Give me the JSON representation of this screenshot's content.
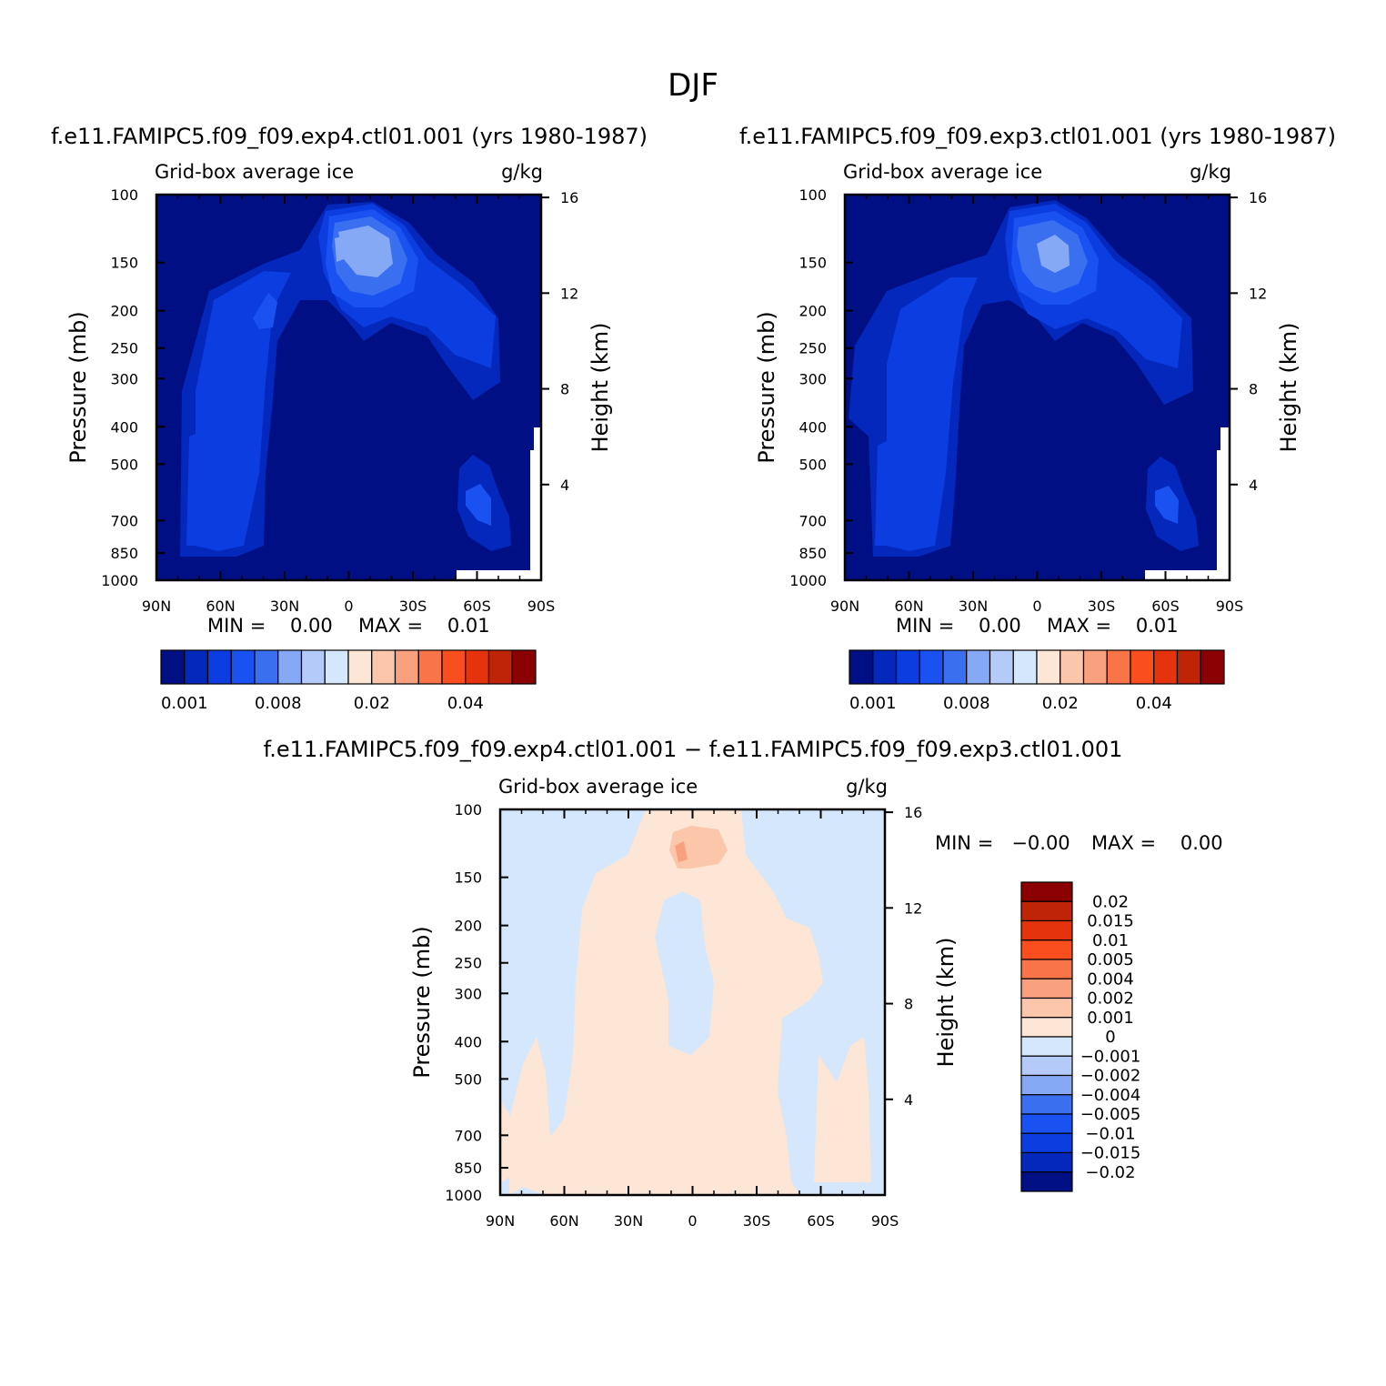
{
  "page_title": "DJF",
  "colors": {
    "pos_levels": [
      "#000f83",
      "#0328bb",
      "#0b3de0",
      "#1a52f2",
      "#3a6ff0",
      "#86a9f5",
      "#b4cbfa",
      "#d5e7fc",
      "#fde6d5",
      "#fbc6aa",
      "#f9a07e",
      "#f97448",
      "#fb4e1f",
      "#e5330e",
      "#bf2407",
      "#8b0000"
    ],
    "diff_levels": [
      "#000f83",
      "#0328bb",
      "#0b3de0",
      "#1a52f2",
      "#3a6ff0",
      "#86a9f5",
      "#b4cbfa",
      "#d5e7fc",
      "#fde6d5",
      "#fbc6aa",
      "#f9a07e",
      "#f97448",
      "#fb4e1f",
      "#e5330e",
      "#bf2407",
      "#8b0000"
    ]
  },
  "chart_data": [
    {
      "type": "heatmap",
      "title": "f.e11.FAMIPC5.f09_f09.exp4.ctl01.001 (yrs 1980-1987)",
      "subtitle_left": "Grid-box average ice",
      "subtitle_right": "g/kg",
      "ylabel": "Pressure (mb)",
      "ylabel_right": "Height (km)",
      "x_ticks": [
        "90N",
        "60N",
        "30N",
        "0",
        "30S",
        "60S",
        "90S"
      ],
      "y_ticks": [
        "100",
        "150",
        "200",
        "250",
        "300",
        "400",
        "500",
        "700",
        "850",
        "1000"
      ],
      "y_ticks_right": [
        "16",
        "12",
        "8",
        "4"
      ],
      "min_text": "MIN =    0.00",
      "max_text": "MAX =    0.01",
      "colorbar_labels": [
        "0.001",
        "0.008",
        "0.02",
        "0.04"
      ],
      "ylim": [
        1000,
        100
      ]
    },
    {
      "type": "heatmap",
      "title": "f.e11.FAMIPC5.f09_f09.exp3.ctl01.001 (yrs 1980-1987)",
      "subtitle_left": "Grid-box average ice",
      "subtitle_right": "g/kg",
      "ylabel": "Pressure (mb)",
      "ylabel_right": "Height (km)",
      "x_ticks": [
        "90N",
        "60N",
        "30N",
        "0",
        "30S",
        "60S",
        "90S"
      ],
      "y_ticks": [
        "100",
        "150",
        "200",
        "250",
        "300",
        "400",
        "500",
        "700",
        "850",
        "1000"
      ],
      "y_ticks_right": [
        "16",
        "12",
        "8",
        "4"
      ],
      "min_text": "MIN =    0.00",
      "max_text": "MAX =    0.01",
      "colorbar_labels": [
        "0.001",
        "0.008",
        "0.02",
        "0.04"
      ],
      "ylim": [
        1000,
        100
      ]
    },
    {
      "type": "heatmap",
      "title": "f.e11.FAMIPC5.f09_f09.exp4.ctl01.001 − f.e11.FAMIPC5.f09_f09.exp3.ctl01.001",
      "subtitle_left": "Grid-box average ice",
      "subtitle_right": "g/kg",
      "ylabel": "Pressure (mb)",
      "ylabel_right": "Height (km)",
      "x_ticks": [
        "90N",
        "60N",
        "30N",
        "0",
        "30S",
        "60S",
        "90S"
      ],
      "y_ticks": [
        "100",
        "150",
        "200",
        "250",
        "300",
        "400",
        "500",
        "700",
        "850",
        "1000"
      ],
      "y_ticks_right": [
        "16",
        "12",
        "8",
        "4"
      ],
      "min_text": "MIN =   −0.00",
      "max_text": "MAX =    0.00",
      "colorbar_labels": [
        "0.02",
        "0.015",
        "0.01",
        "0.005",
        "0.004",
        "0.002",
        "0.001",
        "0",
        "−0.001",
        "−0.002",
        "−0.004",
        "−0.005",
        "−0.01",
        "−0.015",
        "−0.02"
      ],
      "ylim": [
        1000,
        100
      ]
    }
  ]
}
